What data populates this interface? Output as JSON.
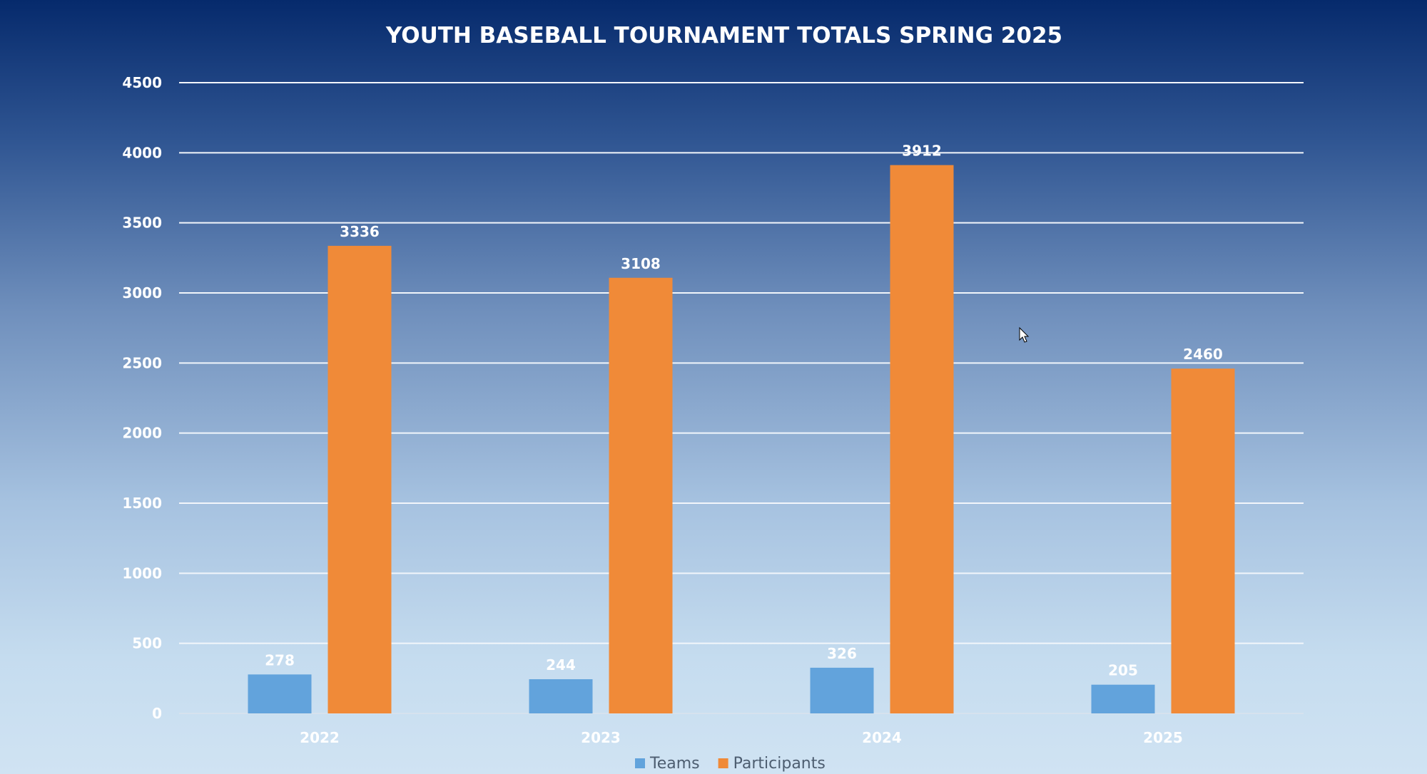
{
  "chart_data": {
    "type": "bar",
    "title": "YOUTH BASEBALL TOURNAMENT TOTALS SPRING 2025",
    "categories": [
      "2022",
      "2023",
      "2024",
      "2025"
    ],
    "series": [
      {
        "name": "Teams",
        "values": [
          278,
          244,
          326,
          205
        ],
        "color": "#62a3dc"
      },
      {
        "name": "Participants",
        "values": [
          3336,
          3108,
          3912,
          2460
        ],
        "color": "#f08a38"
      }
    ],
    "xlabel": "",
    "ylabel": "",
    "ylim": [
      0,
      4500
    ],
    "yticks": [
      "0",
      "500",
      "1000",
      "1500",
      "2000",
      "2500",
      "3000",
      "3500",
      "4000",
      "4500"
    ],
    "grid": true,
    "legend": "bottom-center"
  }
}
